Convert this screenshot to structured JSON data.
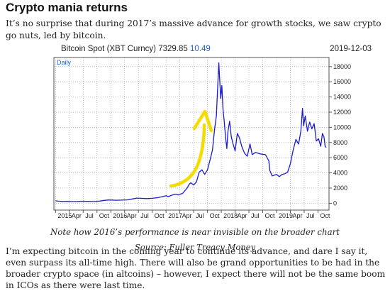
{
  "title": "Crypto mania returns",
  "intro": "It’s no surprise that during 2017’s massive advance for growth stocks, we saw crypto go nuts, led by bitcoin.",
  "chart_header": {
    "name": "Bitcoin Spot (XBT Curncy)",
    "price": "7329.85",
    "change": "10.49",
    "date": "2019-12-03"
  },
  "captions": {
    "note": "Note how 2016’s performance is near invisible on the broader chart",
    "source": "Source: Fuller Treacy Money"
  },
  "body": "I’m expecting bitcoin in the coming year to continue its advance, and dare I say it, even surpass its all-time high. There will also be grand opportunities to be had in the broader crypto space (in altcoins) – however, I expect there will not be the same boom in ICOs as there were last time.",
  "colors": {
    "line": "#1a1adb",
    "arrow": "#f5dc00",
    "grid": "#8a8a8a",
    "header_accent": "#1f5fd6"
  },
  "chart_data": {
    "type": "line",
    "period_label": "Daily",
    "x_tick_labels": [
      "2015",
      "Apr",
      "Jul",
      "Oct",
      "2016",
      "Apr",
      "Jul",
      "Oct",
      "2017",
      "Apr",
      "Jul",
      "Oct",
      "2018",
      "Apr",
      "Jul",
      "Oct",
      "2019",
      "Apr",
      "Jul",
      "Oct"
    ],
    "x_tick_times": [
      2015.0,
      2015.25,
      2015.5,
      2015.75,
      2016.0,
      2016.25,
      2016.5,
      2016.75,
      2017.0,
      2017.25,
      2017.5,
      2017.75,
      2018.0,
      2018.25,
      2018.5,
      2018.75,
      2019.0,
      2019.25,
      2019.5,
      2019.75
    ],
    "xlim": [
      2014.97,
      2019.95
    ],
    "ylim": [
      -900,
      19200
    ],
    "y_ticks": [
      0,
      2000,
      4000,
      6000,
      8000,
      10000,
      12000,
      14000,
      16000,
      18000
    ],
    "grid": true,
    "series": [
      {
        "values": [
          [
            2015.0,
            315
          ],
          [
            2015.05,
            280
          ],
          [
            2015.12,
            240
          ],
          [
            2015.2,
            255
          ],
          [
            2015.3,
            230
          ],
          [
            2015.4,
            240
          ],
          [
            2015.5,
            270
          ],
          [
            2015.6,
            250
          ],
          [
            2015.7,
            235
          ],
          [
            2015.8,
            290
          ],
          [
            2015.88,
            380
          ],
          [
            2015.95,
            430
          ],
          [
            2016.0,
            430
          ],
          [
            2016.1,
            400
          ],
          [
            2016.2,
            420
          ],
          [
            2016.3,
            450
          ],
          [
            2016.4,
            580
          ],
          [
            2016.47,
            680
          ],
          [
            2016.55,
            650
          ],
          [
            2016.65,
            610
          ],
          [
            2016.75,
            650
          ],
          [
            2016.85,
            740
          ],
          [
            2016.95,
            900
          ],
          [
            2017.0,
            1000
          ],
          [
            2017.04,
            880
          ],
          [
            2017.1,
            1050
          ],
          [
            2017.17,
            1200
          ],
          [
            2017.22,
            1100
          ],
          [
            2017.3,
            1300
          ],
          [
            2017.38,
            2000
          ],
          [
            2017.42,
            2500
          ],
          [
            2017.45,
            2700
          ],
          [
            2017.5,
            2400
          ],
          [
            2017.55,
            2800
          ],
          [
            2017.6,
            4100
          ],
          [
            2017.65,
            4400
          ],
          [
            2017.7,
            3800
          ],
          [
            2017.75,
            4400
          ],
          [
            2017.8,
            5800
          ],
          [
            2017.84,
            7000
          ],
          [
            2017.88,
            9800
          ],
          [
            2017.91,
            11500
          ],
          [
            2017.93,
            14500
          ],
          [
            2017.955,
            18500
          ],
          [
            2017.97,
            16500
          ],
          [
            2017.99,
            13800
          ],
          [
            2018.01,
            15500
          ],
          [
            2018.03,
            12500
          ],
          [
            2018.05,
            11000
          ],
          [
            2018.08,
            8500
          ],
          [
            2018.1,
            7200
          ],
          [
            2018.12,
            9400
          ],
          [
            2018.15,
            10800
          ],
          [
            2018.18,
            8800
          ],
          [
            2018.21,
            7900
          ],
          [
            2018.25,
            6900
          ],
          [
            2018.29,
            9200
          ],
          [
            2018.33,
            8600
          ],
          [
            2018.37,
            7500
          ],
          [
            2018.42,
            6600
          ],
          [
            2018.47,
            6200
          ],
          [
            2018.52,
            7800
          ],
          [
            2018.56,
            6400
          ],
          [
            2018.62,
            6700
          ],
          [
            2018.7,
            6500
          ],
          [
            2018.8,
            6400
          ],
          [
            2018.86,
            5600
          ],
          [
            2018.88,
            4300
          ],
          [
            2018.92,
            3600
          ],
          [
            2018.96,
            3700
          ],
          [
            2019.0,
            3800
          ],
          [
            2019.05,
            3500
          ],
          [
            2019.1,
            3800
          ],
          [
            2019.15,
            3900
          ],
          [
            2019.2,
            4100
          ],
          [
            2019.25,
            5200
          ],
          [
            2019.3,
            7000
          ],
          [
            2019.35,
            8400
          ],
          [
            2019.4,
            7800
          ],
          [
            2019.44,
            9500
          ],
          [
            2019.47,
            12500
          ],
          [
            2019.49,
            10200
          ],
          [
            2019.52,
            11500
          ],
          [
            2019.56,
            9500
          ],
          [
            2019.6,
            10700
          ],
          [
            2019.64,
            9800
          ],
          [
            2019.68,
            10500
          ],
          [
            2019.72,
            8200
          ],
          [
            2019.76,
            8500
          ],
          [
            2019.8,
            7500
          ],
          [
            2019.83,
            9200
          ],
          [
            2019.86,
            8700
          ],
          [
            2019.88,
            7500
          ],
          [
            2019.9,
            7350
          ]
        ]
      }
    ]
  }
}
